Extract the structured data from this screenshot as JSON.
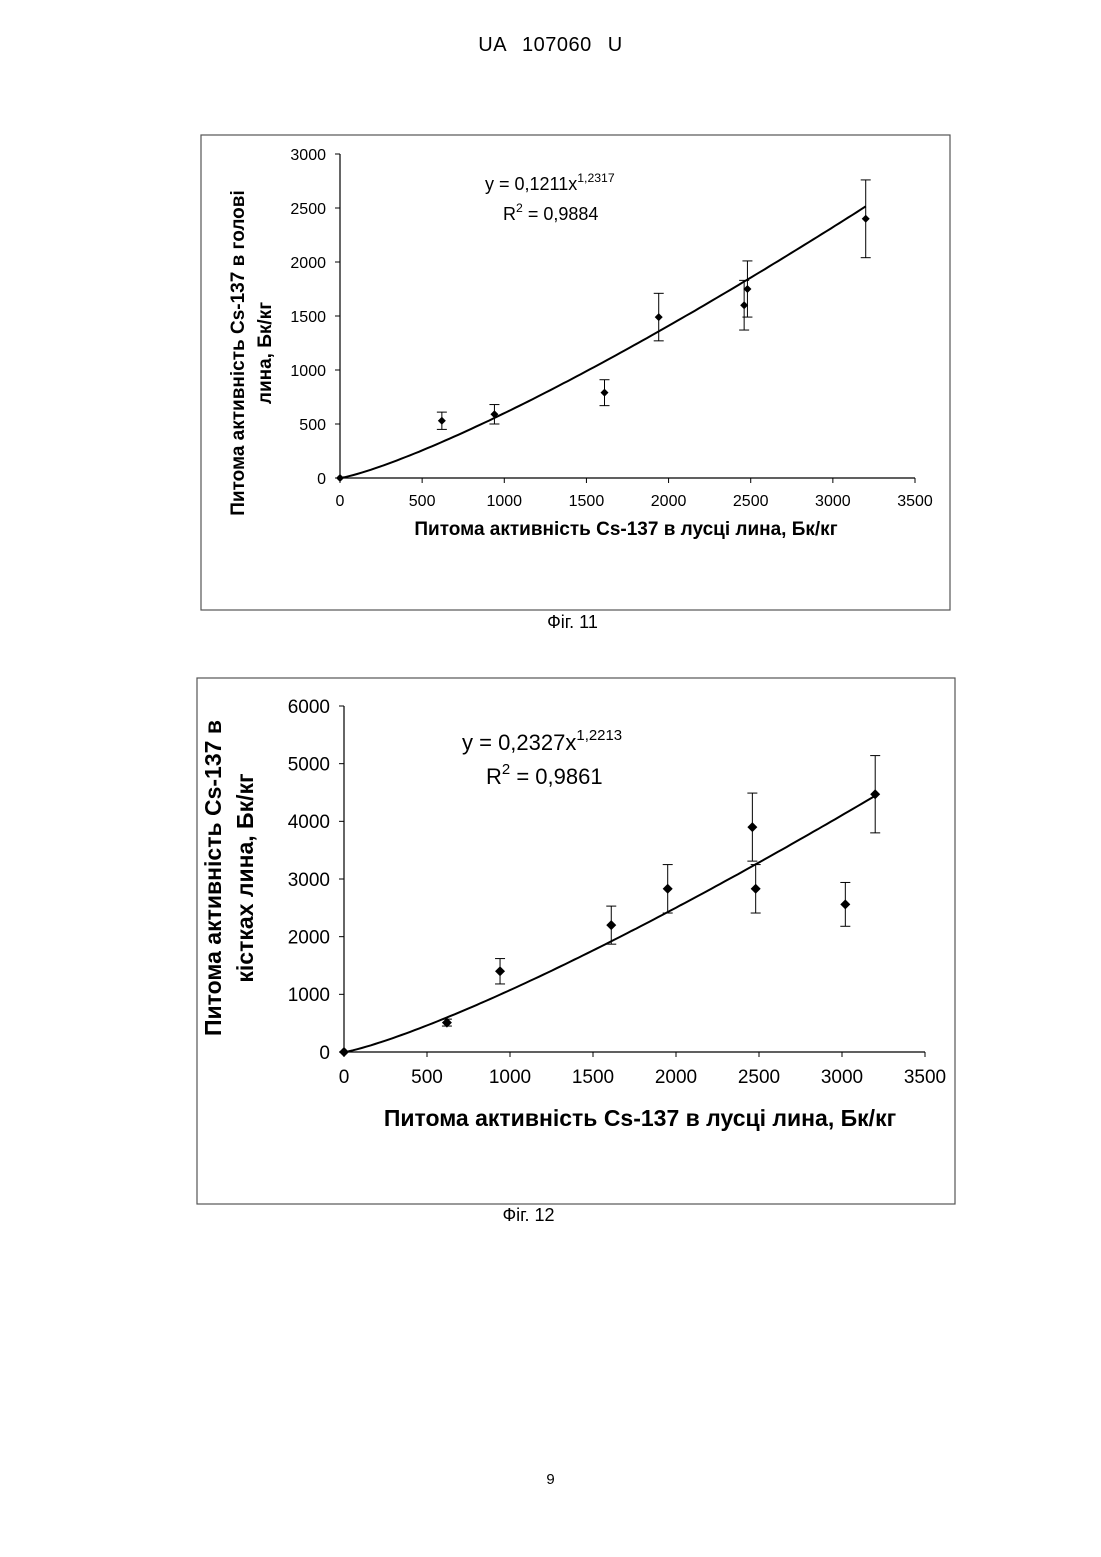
{
  "header": "UA 107060 U",
  "page_number": "9",
  "chart_data": [
    {
      "type": "scatter",
      "figure_label": "Фіг. 11",
      "equation": {
        "prefix": "y = 0,1211x",
        "exponent": "1,2317",
        "r2_prefix": "R",
        "r2_power": "2",
        "r2_value": " = 0,9884"
      },
      "xlabel": "Питома активність Cs-137 в лусці лина, Бк/кг",
      "ylabel": [
        "Питома активність Cs-137 в голові",
        "лина, Бк/кг"
      ],
      "xlim": [
        0,
        3500
      ],
      "ylim": [
        0,
        3000
      ],
      "xticks": [
        0,
        500,
        1000,
        1500,
        2000,
        2500,
        3000,
        3500
      ],
      "yticks": [
        0,
        500,
        1000,
        1500,
        2000,
        2500,
        3000
      ],
      "trend": {
        "type": "power",
        "a": 0.1211,
        "b": 1.2317,
        "x_range": [
          0,
          3200
        ]
      },
      "points": [
        {
          "x": 0,
          "y": 0
        },
        {
          "x": 620,
          "y": 530,
          "err": 80
        },
        {
          "x": 940,
          "y": 590,
          "err": 90
        },
        {
          "x": 1610,
          "y": 790,
          "err": 120
        },
        {
          "x": 1940,
          "y": 1490,
          "err": 220
        },
        {
          "x": 2460,
          "y": 1600,
          "err": 230
        },
        {
          "x": 2480,
          "y": 1750,
          "err": 260
        },
        {
          "x": 3200,
          "y": 2400,
          "err": 360
        }
      ],
      "grid": false
    },
    {
      "type": "scatter",
      "figure_label": "Фіг. 12",
      "equation": {
        "prefix": "y = 0,2327x",
        "exponent": "1,2213",
        "r2_prefix": "R",
        "r2_power": "2",
        "r2_value": " = 0,9861"
      },
      "xlabel": "Питома активність Cs-137 в лусці лина, Бк/кг",
      "ylabel": [
        "Питома активність Cs-137 в",
        "кістках лина, Бк/кг"
      ],
      "xlim": [
        0,
        3500
      ],
      "ylim": [
        0,
        6000
      ],
      "xticks": [
        0,
        500,
        1000,
        1500,
        2000,
        2500,
        3000,
        3500
      ],
      "yticks": [
        0,
        1000,
        2000,
        3000,
        4000,
        5000,
        6000
      ],
      "trend": {
        "type": "power",
        "a": 0.2327,
        "b": 1.2213,
        "x_range": [
          0,
          3200
        ]
      },
      "points": [
        {
          "x": 0,
          "y": 0
        },
        {
          "x": 620,
          "y": 510,
          "err": 60
        },
        {
          "x": 940,
          "y": 1400,
          "err": 220
        },
        {
          "x": 1610,
          "y": 2200,
          "err": 330
        },
        {
          "x": 1950,
          "y": 2830,
          "err": 420
        },
        {
          "x": 2460,
          "y": 3900,
          "err": 590
        },
        {
          "x": 2480,
          "y": 2830,
          "err": 420
        },
        {
          "x": 3020,
          "y": 2560,
          "err": 380
        },
        {
          "x": 3200,
          "y": 4470,
          "err": 670
        }
      ],
      "grid": false
    }
  ]
}
